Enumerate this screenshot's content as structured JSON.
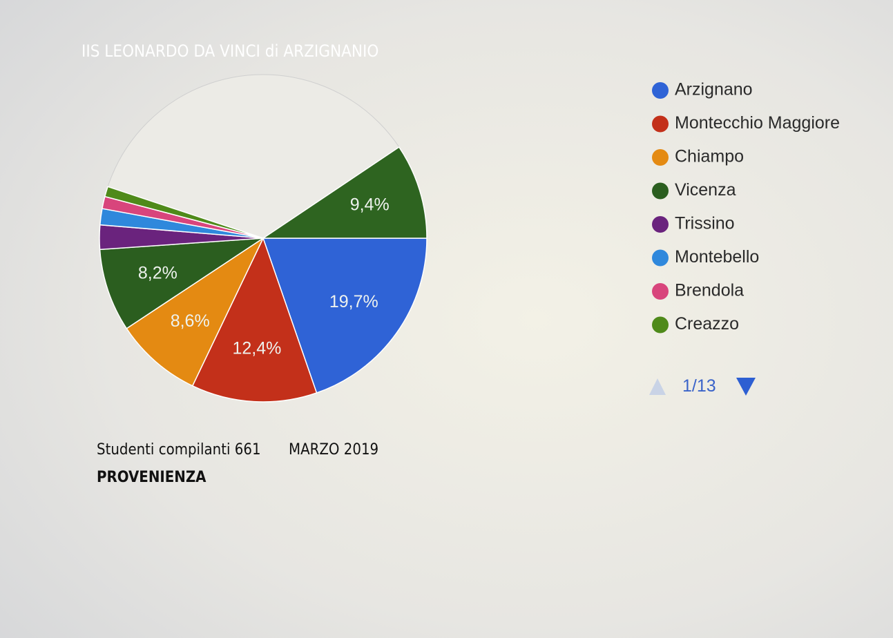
{
  "chart_data": {
    "type": "pie",
    "title": "IIS LEONARDO  DA VINCI di ARZIGNANIO",
    "subtitle": "Studenti compilanti 661",
    "date": "MARZO 2019",
    "caption": "PROVENIENZA",
    "categories": [
      "Arzignano",
      "Montecchio Maggiore",
      "Chiampo",
      "Vicenza",
      "Trissino",
      "Montebello",
      "Brendola",
      "Creazzo",
      null
    ],
    "values": [
      19.7,
      12.4,
      8.6,
      8.2,
      2.4,
      1.6,
      1.2,
      1.0,
      9.4
    ],
    "value_labels": [
      "19,7%",
      "12,4%",
      "8,6%",
      "8,2%",
      null,
      null,
      null,
      null,
      "9,4%"
    ],
    "colors": [
      "#2f63d6",
      "#c3301a",
      "#e48a12",
      "#2b5e1f",
      "#6a237d",
      "#2f88dc",
      "#d8457c",
      "#4f8a1a",
      "#2e6420"
    ],
    "legend_page": "1/13",
    "legend_position": "right"
  }
}
